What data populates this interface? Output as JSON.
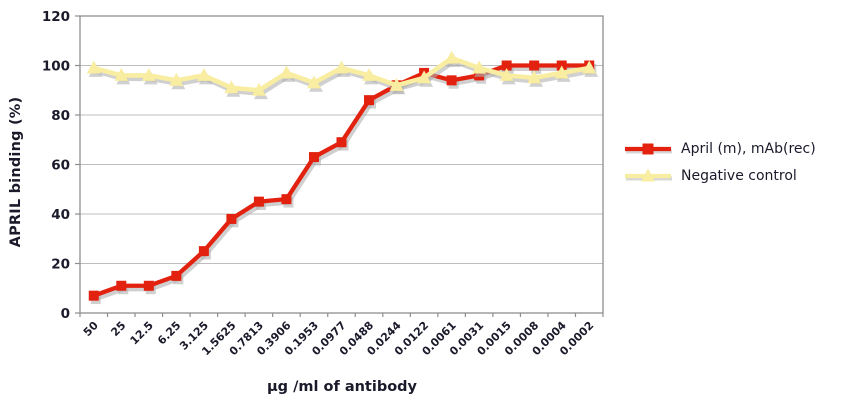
{
  "chart_data": {
    "type": "line",
    "title": "",
    "xlabel": "µg /ml of antibody",
    "ylabel": "APRIL binding (%)",
    "ylim": [
      0,
      120
    ],
    "ytick_step": 20,
    "grid": true,
    "legend_position": "right",
    "categories": [
      "50",
      "25",
      "12.5",
      "6.25",
      "3.125",
      "1.5625",
      "0.7813",
      "0.3906",
      "0.1953",
      "0.0977",
      "0.0488",
      "0.0244",
      "0.0122",
      "0.0061",
      "0.0031",
      "0.0015",
      "0.0008",
      "0.0004",
      "0.0002"
    ],
    "series": [
      {
        "name": "April (m), mAb(rec)",
        "marker": "square",
        "color": "#e2220f",
        "values": [
          7,
          11,
          11,
          15,
          25,
          38,
          45,
          46,
          63,
          69,
          86,
          92,
          97,
          94,
          96,
          100,
          100,
          100,
          100
        ]
      },
      {
        "name": "Negative control",
        "marker": "triangle",
        "color": "#f8eda0",
        "values": [
          99,
          96,
          96,
          94,
          96,
          91,
          90,
          97,
          93,
          99,
          96,
          92,
          95,
          103,
          99,
          96,
          95,
          97,
          99
        ]
      }
    ]
  },
  "colors": {
    "april_red": "#e2220f",
    "negative_yellow": "#f8eda0",
    "gridline": "#bdbdbd",
    "frame": "#8e8e8e",
    "shadow": "#b0b0b0",
    "text": "#1a1a2b",
    "background": "#ffffff"
  }
}
